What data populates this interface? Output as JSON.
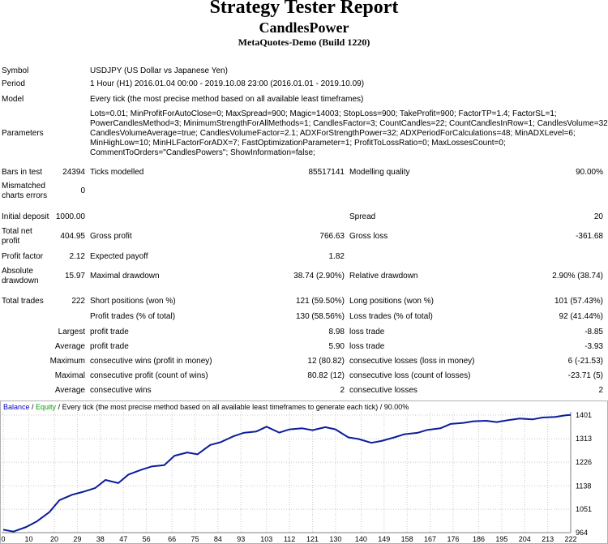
{
  "header": {
    "title": "Strategy Tester Report",
    "expert": "CandlesPower",
    "server": "MetaQuotes-Demo (Build 1220)"
  },
  "info": {
    "symbol_label": "Symbol",
    "symbol_value": "USDJPY (US Dollar vs Japanese Yen)",
    "period_label": "Period",
    "period_value": "1 Hour (H1) 2016.01.04 00:00 - 2019.10.08 23:00 (2016.01.01 - 2019.10.09)",
    "model_label": "Model",
    "model_value": "Every tick (the most precise method based on all available least timeframes)",
    "parameters_label": "Parameters",
    "parameters_lines": [
      "Lots=0.01; MinProfitForAutoClose=0; MaxSpread=900; Magic=14003; StopLoss=900; TakeProfit=900; FactorTP=1.4; FactorSL=1;",
      "PowerCandlesMethod=3; MinimumStrengthForAllMethods=1; CandlesFactor=3; CountCandles=22; CountCandlesInRow=1; CandlesVolume=32;",
      "CandlesVolumeAverage=true; CandlesVolumeFactor=2.1; ADXForStrengthPower=32; ADXPeriodForCalculations=48; MinADXLevel=6;",
      "MinHighLow=10; MinHLFactorForADX=7; FastOptimizationParameter=1; ProfitToLossRatio=0; MaxLossesCount=0;",
      "CommentToOrders=\"CandlesPowers\"; ShowInformation=false;"
    ]
  },
  "stats": {
    "bars_label": "Bars in test",
    "bars_value": "24394",
    "ticks_label": "Ticks modelled",
    "ticks_value": "85517141",
    "quality_label": "Modelling quality",
    "quality_value": "90.00%",
    "mismatch_label": "Mismatched charts errors",
    "mismatch_value": "0",
    "deposit_label": "Initial deposit",
    "deposit_value": "1000.00",
    "spread_label": "Spread",
    "spread_value": "20",
    "netprofit_label": "Total net profit",
    "netprofit_value": "404.95",
    "grossprofit_label": "Gross profit",
    "grossprofit_value": "766.63",
    "grossloss_label": "Gross loss",
    "grossloss_value": "-361.68",
    "pf_label": "Profit factor",
    "pf_value": "2.12",
    "payoff_label": "Expected payoff",
    "payoff_value": "1.82",
    "absdd_label": "Absolute drawdown",
    "absdd_value": "15.97",
    "maxdd_label": "Maximal drawdown",
    "maxdd_value": "38.74 (2.90%)",
    "reldd_label": "Relative drawdown",
    "reldd_value": "2.90% (38.74)",
    "trades_label": "Total trades",
    "trades_value": "222",
    "short_label": "Short positions (won %)",
    "short_value": "121 (59.50%)",
    "long_label": "Long positions (won %)",
    "long_value": "101 (57.43%)",
    "profittrades_label": "Profit trades (% of total)",
    "profittrades_value": "130 (58.56%)",
    "losstrades_label": "Loss trades (% of total)",
    "losstrades_value": "92 (41.44%)",
    "largest_label": "Largest",
    "largest_profit_label": "profit trade",
    "largest_profit_value": "8.98",
    "largest_loss_label": "loss trade",
    "largest_loss_value": "-8.85",
    "average_label": "Average",
    "average_profit_label": "profit trade",
    "average_profit_value": "5.90",
    "average_loss_label": "loss trade",
    "average_loss_value": "-3.93",
    "maximum_label": "Maximum",
    "max_wins_label": "consecutive wins (profit in money)",
    "max_wins_value": "12 (80.82)",
    "max_losses_label": "consecutive losses (loss in money)",
    "max_losses_value": "6 (-21.53)",
    "maximal_label": "Maximal",
    "mxl_profit_label": "consecutive profit (count of wins)",
    "mxl_profit_value": "80.82 (12)",
    "mxl_loss_label": "consecutive loss (count of losses)",
    "mxl_loss_value": "-23.71 (5)",
    "average2_label": "Average",
    "avg_wins_label": "consecutive wins",
    "avg_wins_value": "2",
    "avg_losses_label": "consecutive losses",
    "avg_losses_value": "2"
  },
  "chart_caption": {
    "balance": "Balance",
    "sep1": " / ",
    "equity": "Equity",
    "rest": " / Every tick (the most precise method based on all available least timeframes to generate each tick) / 90.00%"
  },
  "colors": {
    "balance": "#0000c8",
    "equity": "#00a000",
    "grid": "#c8c8c8",
    "line": "#0b1c9c"
  },
  "chart_data": {
    "type": "line",
    "title": "Balance / Equity",
    "series": [
      {
        "name": "Balance",
        "x": [
          0,
          4,
          9,
          13,
          18,
          22,
          27,
          31,
          36,
          40,
          45,
          49,
          54,
          58,
          63,
          67,
          72,
          76,
          81,
          85,
          90,
          94,
          99,
          103,
          108,
          112,
          117,
          121,
          126,
          130,
          135,
          139,
          144,
          148,
          153,
          157,
          162,
          166,
          171,
          175,
          180,
          184,
          189,
          193,
          198,
          202,
          207,
          211,
          216,
          220,
          222
        ],
        "y": [
          975,
          968,
          985,
          1005,
          1040,
          1085,
          1105,
          1115,
          1130,
          1160,
          1148,
          1180,
          1198,
          1210,
          1215,
          1250,
          1262,
          1255,
          1290,
          1300,
          1322,
          1335,
          1340,
          1358,
          1336,
          1348,
          1352,
          1345,
          1356,
          1348,
          1318,
          1312,
          1298,
          1305,
          1318,
          1330,
          1335,
          1346,
          1352,
          1368,
          1372,
          1378,
          1380,
          1375,
          1383,
          1388,
          1385,
          1392,
          1394,
          1400,
          1402
        ]
      }
    ],
    "xticks": [
      "0",
      "10",
      "20",
      "29",
      "38",
      "47",
      "56",
      "66",
      "75",
      "84",
      "93",
      "103",
      "112",
      "121",
      "130",
      "140",
      "149",
      "158",
      "167",
      "176",
      "186",
      "195",
      "204",
      "213",
      "222"
    ],
    "yticks": [
      "964",
      "1051",
      "1138",
      "1226",
      "1313",
      "1401"
    ],
    "xlim": [
      0,
      222
    ],
    "ylim": [
      964,
      1401
    ]
  }
}
